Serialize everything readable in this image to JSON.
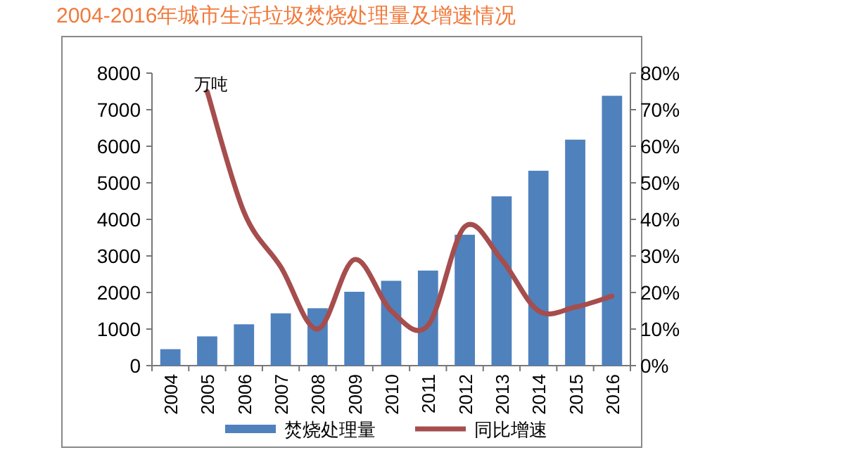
{
  "chart_data": {
    "type": "bar",
    "title": "2004-2016年城市生活垃圾焚烧处理量及增速情况",
    "categories": [
      "2004",
      "2005",
      "2006",
      "2007",
      "2008",
      "2009",
      "2010",
      "2011",
      "2012",
      "2013",
      "2014",
      "2015",
      "2016"
    ],
    "series": [
      {
        "name": "焚烧处理量",
        "color": "#4f81bd",
        "values": [
          450,
          800,
          1130,
          1430,
          1570,
          2020,
          2320,
          2600,
          3580,
          4630,
          5330,
          6180,
          7380
        ]
      },
      {
        "name": "同比增速",
        "type": "line",
        "axis": "y2",
        "color": "#a64d4d",
        "values": [
          null,
          75,
          42,
          27,
          10,
          29,
          15,
          11,
          38,
          29,
          15,
          16,
          19
        ]
      }
    ],
    "ylim": [
      0,
      8000
    ],
    "yticks": [
      0,
      1000,
      2000,
      3000,
      4000,
      5000,
      6000,
      7000,
      8000
    ],
    "y2lim": [
      0,
      80
    ],
    "y2ticks": [
      {
        "value": 0,
        "label": "0%"
      },
      {
        "value": 10,
        "label": "10%"
      },
      {
        "value": 20,
        "label": "20%"
      },
      {
        "value": 30,
        "label": "30%"
      },
      {
        "value": 40,
        "label": "40%"
      },
      {
        "value": 50,
        "label": "50%"
      },
      {
        "value": 60,
        "label": "60%"
      },
      {
        "value": 70,
        "label": "70%"
      },
      {
        "value": 80,
        "label": "80%"
      }
    ],
    "annotations": [
      "万吨"
    ],
    "legend": "bottom",
    "grid": false,
    "marker": "none"
  }
}
